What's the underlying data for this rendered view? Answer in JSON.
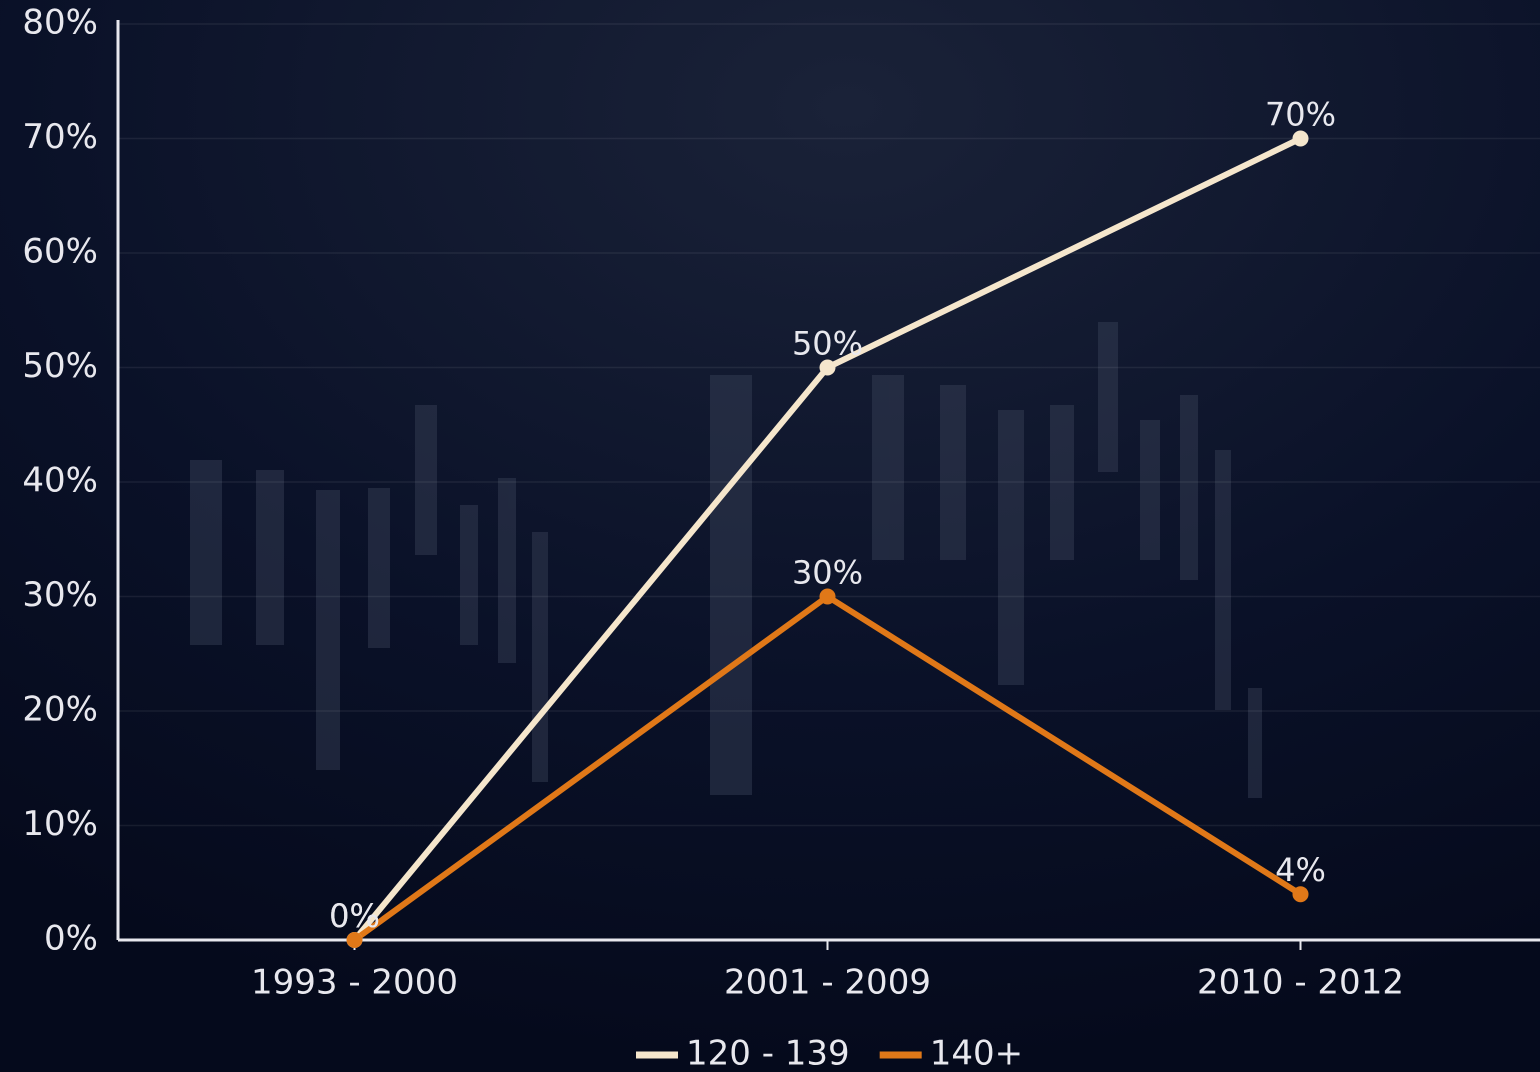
{
  "chart_data": {
    "type": "line",
    "categories": [
      "1993 - 2000",
      "2001 - 2009",
      "2010 - 2012"
    ],
    "series": [
      {
        "name": "120 - 139",
        "color": "#f5e6cc",
        "values": [
          0,
          50,
          70
        ],
        "value_labels": [
          "0%",
          "50%",
          "70%"
        ]
      },
      {
        "name": "140+",
        "color": "#e07818",
        "values": [
          0,
          30,
          4
        ],
        "value_labels": [
          "0%",
          "30%",
          "4%"
        ]
      }
    ],
    "ylim": [
      0,
      80
    ],
    "yticks": [
      {
        "value": 0,
        "label": "0%"
      },
      {
        "value": 10,
        "label": "10%"
      },
      {
        "value": 20,
        "label": "20%"
      },
      {
        "value": 30,
        "label": "30%"
      },
      {
        "value": 40,
        "label": "40%"
      },
      {
        "value": 50,
        "label": "50%"
      },
      {
        "value": 60,
        "label": "60%"
      },
      {
        "value": 70,
        "label": "70%"
      },
      {
        "value": 80,
        "label": "80%"
      }
    ],
    "grid": true,
    "legend": "bottom"
  }
}
